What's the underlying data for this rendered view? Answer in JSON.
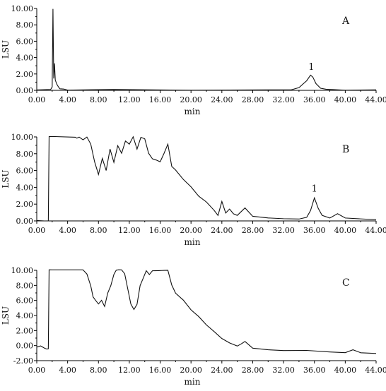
{
  "chart_data": [
    {
      "type": "line",
      "panel_label": "A",
      "xlabel": "min",
      "ylabel": "LSU",
      "xlim": [
        0,
        44
      ],
      "ylim": [
        0,
        10
      ],
      "xticks": [
        "0.00",
        "4.00",
        "8.00",
        "12.00",
        "16.00",
        "20.00",
        "24.00",
        "28.00",
        "32.00",
        "36.00",
        "40.00",
        "44.00"
      ],
      "yticks": [
        "0.00",
        "2.00",
        "4.00",
        "6.00",
        "8.00",
        "10.00"
      ],
      "annotations": [
        {
          "text": "1",
          "x": 35.6,
          "y": 2.0
        }
      ],
      "series": [
        {
          "x": [
            0,
            1.8,
            2.0,
            2.1,
            2.2,
            2.3,
            2.4,
            2.6,
            2.8,
            3.0,
            3.5,
            4.0,
            10,
            20,
            30,
            33,
            34,
            35,
            35.5,
            35.8,
            36.2,
            36.8,
            37.5,
            40,
            44
          ],
          "y": [
            0.05,
            0.1,
            0.4,
            9.9,
            1.5,
            3.3,
            1.2,
            0.8,
            0.4,
            0.2,
            0.1,
            0.05,
            0.05,
            0.05,
            0.05,
            0.1,
            0.3,
            1.2,
            1.8,
            1.6,
            0.8,
            0.3,
            0.1,
            0.05,
            0.05
          ]
        }
      ]
    },
    {
      "type": "line",
      "panel_label": "B",
      "xlabel": "min",
      "ylabel": "LSU",
      "xlim": [
        0,
        44
      ],
      "ylim": [
        0,
        10
      ],
      "xticks": [
        "0.00",
        "4.00",
        "8.00",
        "12.00",
        "16.00",
        "20.00",
        "24.00",
        "28.00",
        "32.00",
        "36.00",
        "40.00",
        "44.00"
      ],
      "yticks": [
        "0.00",
        "2.00",
        "4.00",
        "6.00",
        "8.00",
        "10.00"
      ],
      "annotations": [
        {
          "text": "1",
          "x": 36.0,
          "y": 3.0
        }
      ],
      "series": [
        {
          "x": [
            0,
            1,
            1.5,
            1.6,
            2,
            5,
            5.2,
            5.5,
            6,
            6.5,
            7,
            7.5,
            8,
            8.5,
            9,
            9.5,
            10,
            10.5,
            11,
            11.5,
            12,
            12.5,
            13,
            13.5,
            14,
            14.5,
            15,
            15.5,
            16,
            16.5,
            17,
            17.5,
            18,
            19,
            20,
            21,
            22,
            23,
            23.5,
            24,
            24.5,
            25,
            25.5,
            26,
            27,
            28,
            30,
            32,
            34,
            35,
            35.5,
            36,
            36.5,
            37,
            38,
            39,
            40,
            42,
            44
          ],
          "y": [
            0.05,
            0,
            -0.05,
            10,
            10,
            10,
            9.8,
            10,
            9.6,
            10,
            9.2,
            7,
            5.5,
            7.5,
            6,
            8.5,
            7,
            9,
            8,
            9.5,
            9.2,
            10,
            8.5,
            10,
            9.8,
            8,
            7.4,
            7.3,
            7,
            8,
            9.2,
            6.5,
            6,
            5,
            4,
            3,
            2.2,
            1.3,
            0.6,
            2.3,
            1.0,
            1.4,
            0.8,
            0.7,
            1.5,
            0.6,
            0.4,
            0.3,
            0.25,
            0.4,
            1.2,
            2.8,
            1.5,
            0.6,
            0.4,
            0.8,
            0.4,
            0.3,
            0.2
          ]
        }
      ]
    },
    {
      "type": "line",
      "panel_label": "C",
      "xlabel": "min",
      "ylabel": "LSU",
      "xlim": [
        0,
        44
      ],
      "ylim": [
        -2,
        10
      ],
      "xticks": [
        "0.00",
        "4.00",
        "8.00",
        "12.00",
        "16.00",
        "20.00",
        "24.00",
        "28.00",
        "32.00",
        "36.00",
        "40.00",
        "44.00"
      ],
      "yticks": [
        "-2.00",
        "0.00",
        "2.00",
        "4.00",
        "6.00",
        "8.00",
        "10.00"
      ],
      "annotations": [],
      "series": [
        {
          "x": [
            0,
            0.5,
            1,
            1.3,
            1.5,
            1.6,
            2,
            6,
            6.5,
            7,
            7.3,
            7.6,
            8,
            8.4,
            8.8,
            9.2,
            9.6,
            10,
            10.3,
            10.6,
            11,
            11.4,
            11.8,
            12.2,
            12.6,
            13,
            13.4,
            13.8,
            14.2,
            14.6,
            15,
            15.4,
            15.8,
            16.2,
            16.6,
            17,
            17.5,
            18,
            19,
            20,
            21,
            22,
            23,
            24,
            25,
            26,
            26.5,
            27,
            28,
            30,
            32,
            35,
            38,
            40,
            41,
            42,
            44
          ],
          "y": [
            -0.2,
            -0.1,
            -0.3,
            -0.5,
            -0.4,
            10,
            10,
            10,
            9.5,
            8,
            6.5,
            6,
            5.5,
            6,
            5.2,
            7,
            8,
            9.5,
            10,
            10,
            10,
            9.5,
            7.5,
            5.5,
            4.8,
            5.5,
            8,
            9,
            10,
            9.5,
            10,
            10,
            10,
            10,
            10,
            10,
            8,
            7,
            6,
            4.8,
            3.8,
            2.8,
            1.8,
            1.0,
            0.3,
            0,
            0.2,
            0.5,
            -0.3,
            -0.5,
            -0.6,
            -0.7,
            -0.8,
            -0.9,
            -0.6,
            -0.9,
            -1.0
          ]
        }
      ]
    }
  ]
}
